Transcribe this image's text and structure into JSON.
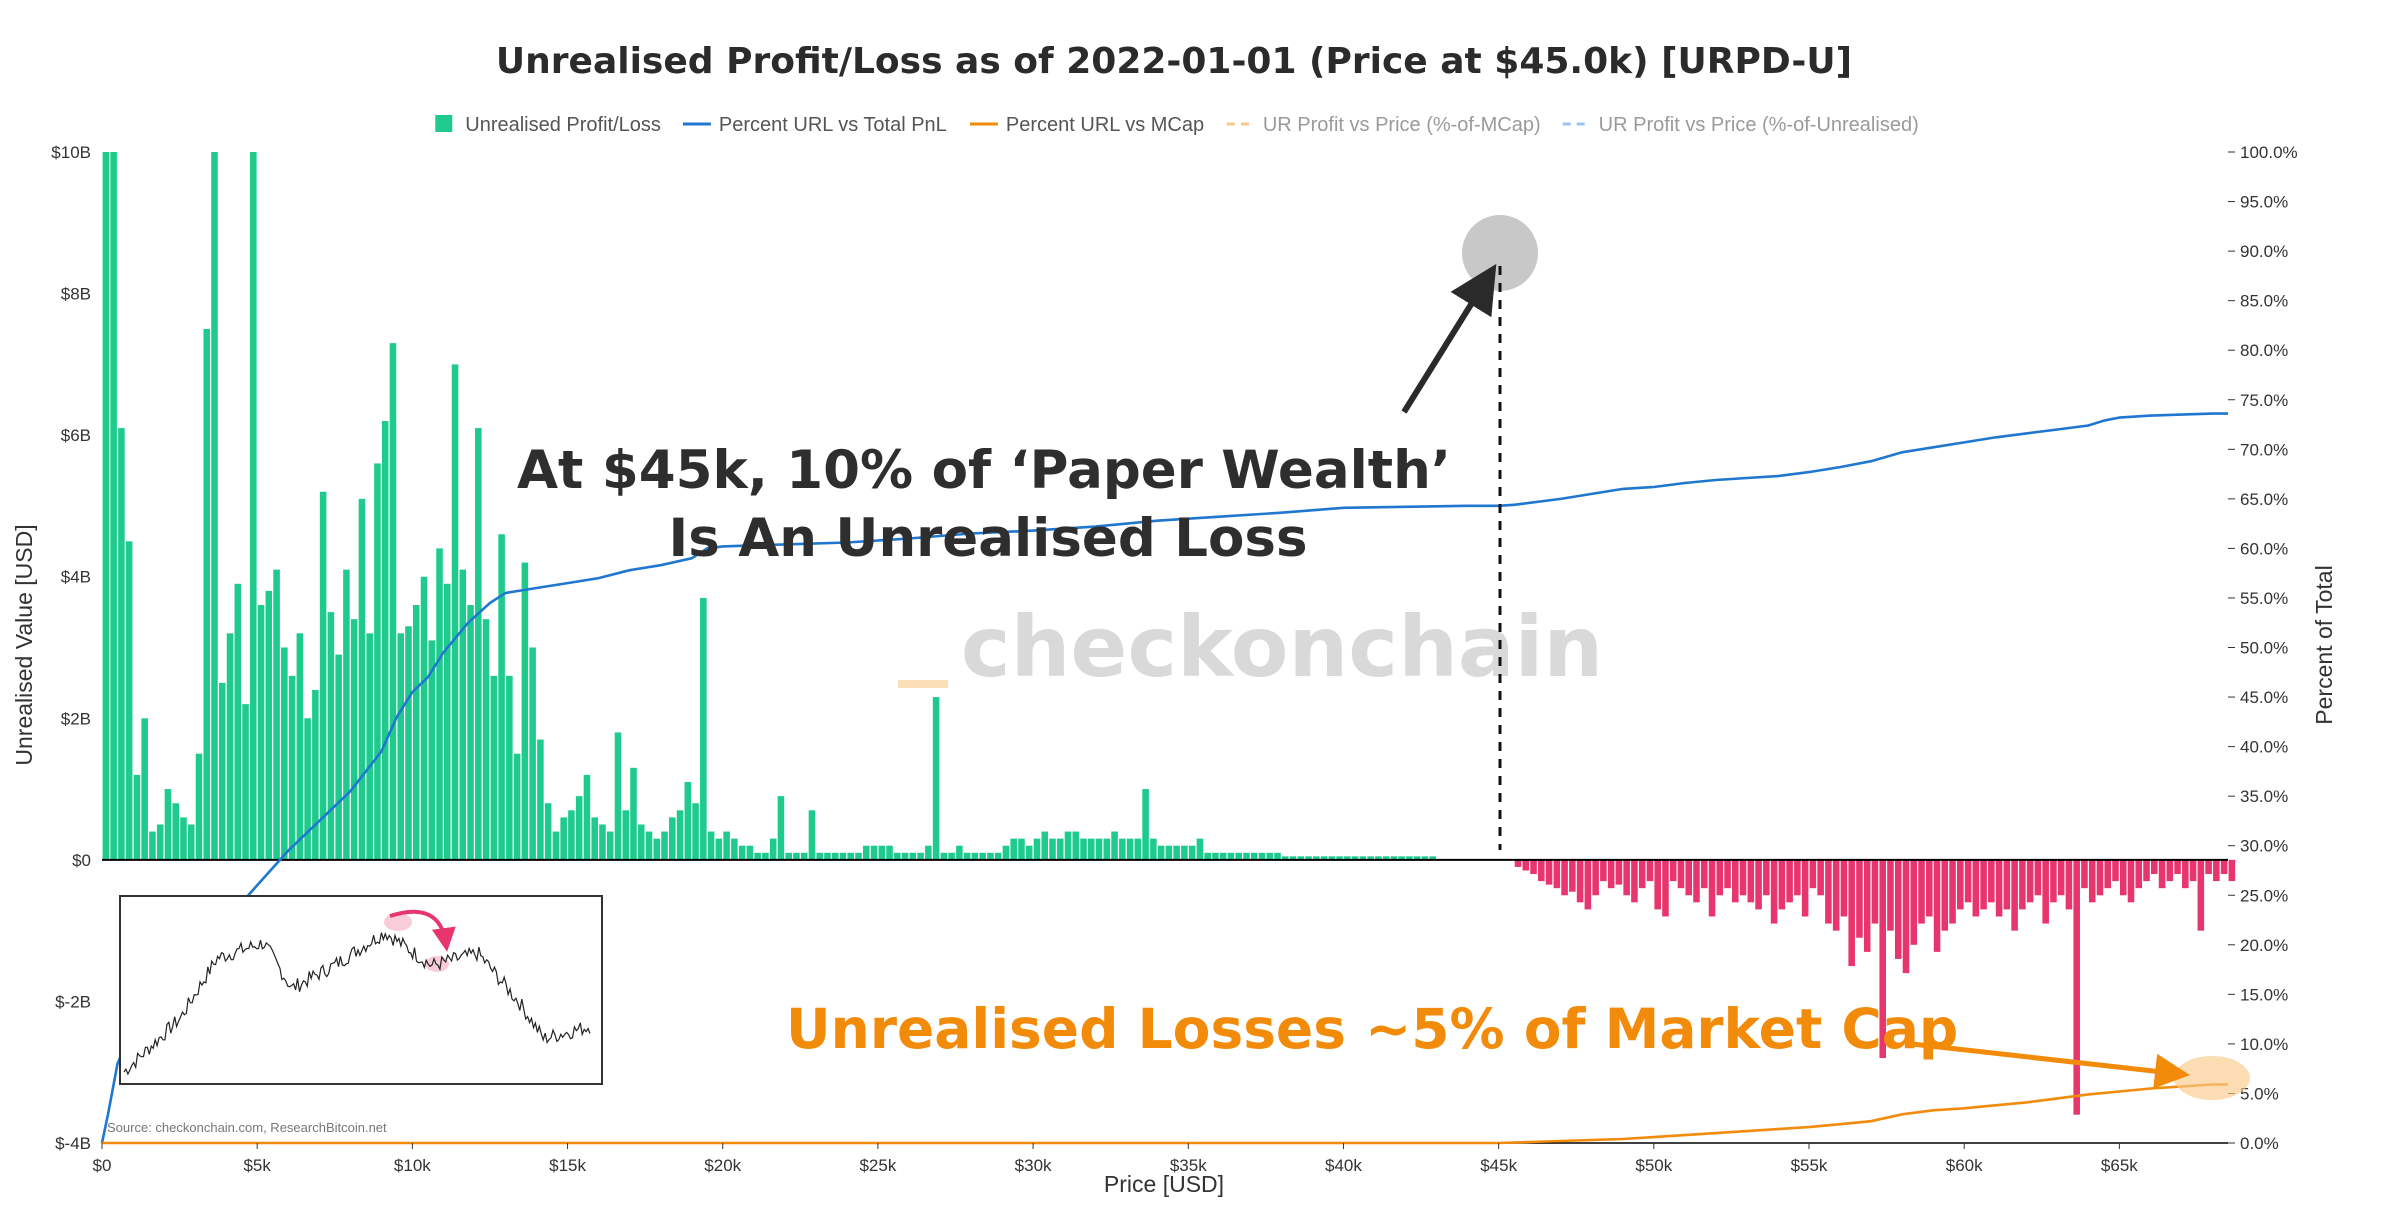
{
  "chart_data": {
    "type": "bar",
    "title": "Unrealised Profit/Loss as of 2022-01-01 (Price at $45.0k) [URPD-U]",
    "xlabel": "Price [USD]",
    "ylabel": "Unrealised Value [USD]",
    "y2label": "Percent of Total",
    "xlim": [
      0,
      68500
    ],
    "ylim": [
      -4,
      10
    ],
    "y2lim": [
      0,
      100
    ],
    "x_ticks": [
      "$0",
      "$5k",
      "$10k",
      "$15k",
      "$20k",
      "$25k",
      "$30k",
      "$35k",
      "$40k",
      "$45k",
      "$50k",
      "$55k",
      "$60k",
      "$65k"
    ],
    "x_tick_values": [
      0,
      5000,
      10000,
      15000,
      20000,
      25000,
      30000,
      35000,
      40000,
      45000,
      50000,
      55000,
      60000,
      65000
    ],
    "y_ticks": [
      "$10B",
      "$8B",
      "$6B",
      "$4B",
      "$2B",
      "$0",
      "$-2B",
      "$-4B"
    ],
    "y_tick_values": [
      10,
      8,
      6,
      4,
      2,
      0,
      -2,
      -4
    ],
    "y2_ticks": [
      "100.0%",
      "95.0%",
      "90.0%",
      "85.0%",
      "80.0%",
      "75.0%",
      "70.0%",
      "65.0%",
      "60.0%",
      "55.0%",
      "50.0%",
      "45.0%",
      "40.0%",
      "35.0%",
      "30.0%",
      "25.0%",
      "20.0%",
      "15.0%",
      "10.0%",
      "5.0%",
      "0.0%"
    ],
    "y2_tick_values": [
      100,
      95,
      90,
      85,
      80,
      75,
      70,
      65,
      60,
      55,
      50,
      45,
      40,
      35,
      30,
      25,
      20,
      15,
      10,
      5,
      0
    ],
    "legend": [
      {
        "label": "Unrealised Profit/Loss",
        "style": "square",
        "color": "#1ecb8c",
        "dim": false
      },
      {
        "label": "Percent URL vs Total PnL",
        "style": "line",
        "color": "#1f77d0",
        "dim": false
      },
      {
        "label": "Percent URL vs MCap",
        "style": "line",
        "color": "#f28a0a",
        "dim": false
      },
      {
        "label": "UR Profit vs Price (%-of-MCap)",
        "style": "dash",
        "color": "#f5c88a",
        "dim": true
      },
      {
        "label": "UR Profit vs Price (%-of-Unrealised)",
        "style": "dash",
        "color": "#9cc4ec",
        "dim": true
      }
    ],
    "colors": {
      "profit": "#1ecb8c",
      "loss": "#e8356d",
      "pnl_line": "#1f77d0",
      "mcap_line": "#f28a0a"
    },
    "bar_width_usd": 250,
    "profit_bars": {
      "x_start": 0,
      "step": 250,
      "values": [
        10.0,
        10.0,
        10.0,
        1.4,
        1.2,
        2.0,
        0.4,
        0.5,
        1.0,
        0.8,
        0.6,
        0.5,
        1.5,
        1.8,
        2.3,
        2.5,
        3.2,
        3.9,
        2.2,
        10.0,
        3.6,
        3.8,
        4.1,
        3.0,
        2.6,
        3.2,
        2.0,
        2.4,
        1.8,
        3.5,
        2.9,
        4.1,
        3.4,
        5.1,
        3.2,
        5.6,
        2.8,
        4.3,
        3.2,
        3.3,
        3.6,
        4.0,
        3.1,
        4.4,
        3.9,
        7.0,
        4.1,
        3.6,
        6.1,
        3.4,
        2.6,
        4.6,
        2.6,
        1.5,
        4.2,
        3.3,
        1.7,
        0.8,
        0.4,
        0.6,
        0.7,
        0.9,
        1.2,
        0.6,
        0.5,
        0.4,
        0.6,
        0.7,
        1.3,
        0.5,
        0.4,
        0.3,
        0.4,
        0.6,
        0.7,
        1.1,
        0.8,
        0.5,
        0.4,
        0.3,
        0.4,
        0.3,
        0.2,
        0.2,
        0.1,
        0.1,
        0.1,
        0.1,
        0.1,
        0.1,
        0.1,
        0.1,
        0.1,
        0.1,
        0.1,
        0.1,
        0.1,
        0.1,
        0.2,
        0.2,
        0.2,
        0.2,
        0.1,
        0.1,
        0.1,
        0.1,
        0.2,
        0.1,
        0.1,
        0.1,
        0.2,
        0.1,
        0.1,
        0.1,
        0.1,
        0.1,
        0.2,
        0.3,
        0.3,
        0.2,
        0.3,
        0.4,
        0.3,
        0.3,
        0.4,
        0.4,
        0.3,
        0.3,
        0.3,
        0.3,
        0.4,
        0.3,
        0.3,
        0.3,
        0.2,
        0.3,
        0.2,
        0.2,
        0.2,
        0.2,
        0.2,
        0.3,
        0.1,
        0.1,
        0.1,
        0.1,
        0.1,
        0.1,
        0.1,
        0.1,
        0.1,
        0.1,
        0.05,
        0.05,
        0.05,
        0.05,
        0.05,
        0.05,
        0.05,
        0.05,
        0.05,
        0.05,
        0.05,
        0.05,
        0.05,
        0.05,
        0.05,
        0.05,
        0.05,
        0.05,
        0.05,
        0.05
      ]
    },
    "profit_bar_overrides": [
      {
        "x": 500,
        "value": 6.1
      },
      {
        "x": 750,
        "value": 4.5
      },
      {
        "x": 3250,
        "value": 7.5
      },
      {
        "x": 3500,
        "value": 10.0
      },
      {
        "x": 9250,
        "value": 7.3
      },
      {
        "x": 9000,
        "value": 6.2
      },
      {
        "x": 7000,
        "value": 5.2
      },
      {
        "x": 19250,
        "value": 3.7
      },
      {
        "x": 13750,
        "value": 3.0
      },
      {
        "x": 16500,
        "value": 1.8
      },
      {
        "x": 26750,
        "value": 2.3
      },
      {
        "x": 33500,
        "value": 1.0
      },
      {
        "x": 22750,
        "value": 0.7
      },
      {
        "x": 21500,
        "value": 0.3
      },
      {
        "x": 21750,
        "value": 0.9
      }
    ],
    "loss_bars": {
      "x_start": 45500,
      "step": 250,
      "values": [
        -0.1,
        -0.15,
        -0.2,
        -0.3,
        -0.35,
        -0.4,
        -0.5,
        -0.45,
        -0.6,
        -0.7,
        -0.5,
        -0.3,
        -0.4,
        -0.35,
        -0.5,
        -0.6,
        -0.4,
        -0.3,
        -0.7,
        -0.8,
        -0.3,
        -0.4,
        -0.5,
        -0.6,
        -0.4,
        -0.8,
        -0.5,
        -0.4,
        -0.6,
        -0.5,
        -0.6,
        -0.7,
        -0.5,
        -0.9,
        -0.7,
        -0.6,
        -0.5,
        -0.8,
        -0.4,
        -0.5,
        -0.9,
        -1.0,
        -0.8,
        -1.5,
        -1.1,
        -1.3,
        -0.9,
        -2.8,
        -1.0,
        -1.4,
        -1.6,
        -1.2,
        -0.9,
        -0.8,
        -1.3,
        -1.0,
        -0.9,
        -0.7,
        -0.6,
        -0.8,
        -0.7,
        -0.6,
        -0.8,
        -0.7,
        -1.0,
        -0.7,
        -0.6,
        -0.5,
        -0.9,
        -0.6,
        -0.5,
        -0.7,
        -3.6,
        -0.4,
        -0.6,
        -0.5,
        -0.4,
        -0.3,
        -0.5,
        -0.6,
        -0.4,
        -0.3,
        -0.2,
        -0.4,
        -0.3,
        -0.2,
        -0.4,
        -0.3,
        -1.0,
        -0.2,
        -0.3,
        -0.2,
        -0.3
      ]
    },
    "series": [
      {
        "name": "Percent URL vs Total PnL",
        "axis": "right",
        "x": [
          0,
          200,
          500,
          1000,
          1500,
          2000,
          2500,
          3000,
          3300,
          3600,
          4000,
          5000,
          6000,
          7000,
          8000,
          9000,
          9500,
          10000,
          10500,
          11000,
          11800,
          12500,
          13000,
          14000,
          15000,
          16000,
          17000,
          18000,
          19000,
          19500,
          20000,
          22000,
          24000,
          26000,
          28000,
          30000,
          32000,
          34000,
          36000,
          38000,
          40000,
          42000,
          44000,
          45000,
          45500,
          47000,
          48000,
          49000,
          50000,
          51000,
          52000,
          53000,
          54000,
          55000,
          56000,
          57000,
          58000,
          59000,
          60000,
          61000,
          62000,
          63000,
          64000,
          64500,
          65000,
          66000,
          67000,
          68000,
          68500
        ],
        "y": [
          0,
          3.0,
          8.0,
          11.5,
          12.0,
          12.5,
          13.5,
          14.5,
          17.0,
          20.5,
          22.5,
          26.0,
          29.5,
          32.5,
          35.5,
          39.5,
          43.0,
          45.5,
          47.0,
          49.5,
          52.5,
          54.5,
          55.5,
          56.0,
          56.5,
          57.0,
          57.8,
          58.3,
          59.0,
          60.0,
          60.2,
          60.4,
          60.6,
          61.0,
          61.5,
          61.8,
          62.2,
          62.8,
          63.2,
          63.6,
          64.1,
          64.2,
          64.3,
          64.3,
          64.4,
          65.0,
          65.5,
          66.0,
          66.2,
          66.6,
          66.9,
          67.1,
          67.3,
          67.7,
          68.2,
          68.8,
          69.7,
          70.2,
          70.7,
          71.2,
          71.6,
          72.0,
          72.4,
          72.9,
          73.2,
          73.4,
          73.5,
          73.6,
          73.6
        ]
      },
      {
        "name": "Percent URL vs MCap",
        "axis": "right",
        "x": [
          0,
          45000,
          46000,
          47000,
          48000,
          49000,
          50000,
          51000,
          52000,
          53000,
          54000,
          55000,
          56000,
          57000,
          58000,
          59000,
          60000,
          61000,
          62000,
          63000,
          64000,
          65000,
          66000,
          67000,
          68000,
          68500
        ],
        "y": [
          0,
          0,
          0.1,
          0.2,
          0.3,
          0.4,
          0.6,
          0.8,
          1.0,
          1.2,
          1.4,
          1.6,
          1.9,
          2.2,
          2.9,
          3.3,
          3.5,
          3.8,
          4.1,
          4.5,
          4.9,
          5.2,
          5.5,
          5.7,
          5.9,
          5.9
        ]
      }
    ],
    "annotations": {
      "headline_line1": "At $45k, 10% of ‘Paper Wealth’",
      "headline_line2": "Is An Unrealised Loss",
      "market_cap_note": "Unrealised Losses ~5% of Market Cap",
      "watermark": "checkonchain",
      "source": "Source: checkonchain.com, ResearchBitcoin.net"
    }
  }
}
